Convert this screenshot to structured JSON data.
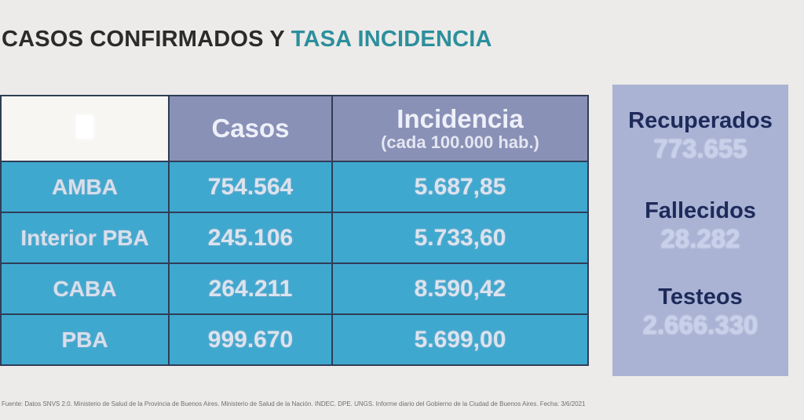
{
  "title": {
    "part1": "CASOS CONFIRMADOS Y",
    "part2": "TASA INCIDENCIA"
  },
  "table": {
    "headers": {
      "casos": "Casos",
      "incidencia": "Incidencia",
      "incidencia_sub": "(cada 100.000 hab.)"
    },
    "rows": [
      {
        "region": "AMBA",
        "casos": "754.564",
        "incidencia": "5.687,85"
      },
      {
        "region": "Interior PBA",
        "casos": "245.106",
        "incidencia": "5.733,60"
      },
      {
        "region": "CABA",
        "casos": "264.211",
        "incidencia": "8.590,42"
      },
      {
        "region": "PBA",
        "casos": "999.670",
        "incidencia": "5.699,00"
      }
    ]
  },
  "stats": [
    {
      "label": "Recuperados",
      "value": "773.655"
    },
    {
      "label": "Fallecidos",
      "value": "28.282"
    },
    {
      "label": "Testeos",
      "value": "2.666.330"
    }
  ],
  "footer": "Fuente: Datos SNVS 2.0. Ministerio de Salud de la Provincia de Buenos Aires. Ministerio de Salud de la Nación. INDEC. DPE. UNGS. Informe diario del Gobierno de la Ciudad de Buenos Aires. Fecha: 3/6/2021"
}
